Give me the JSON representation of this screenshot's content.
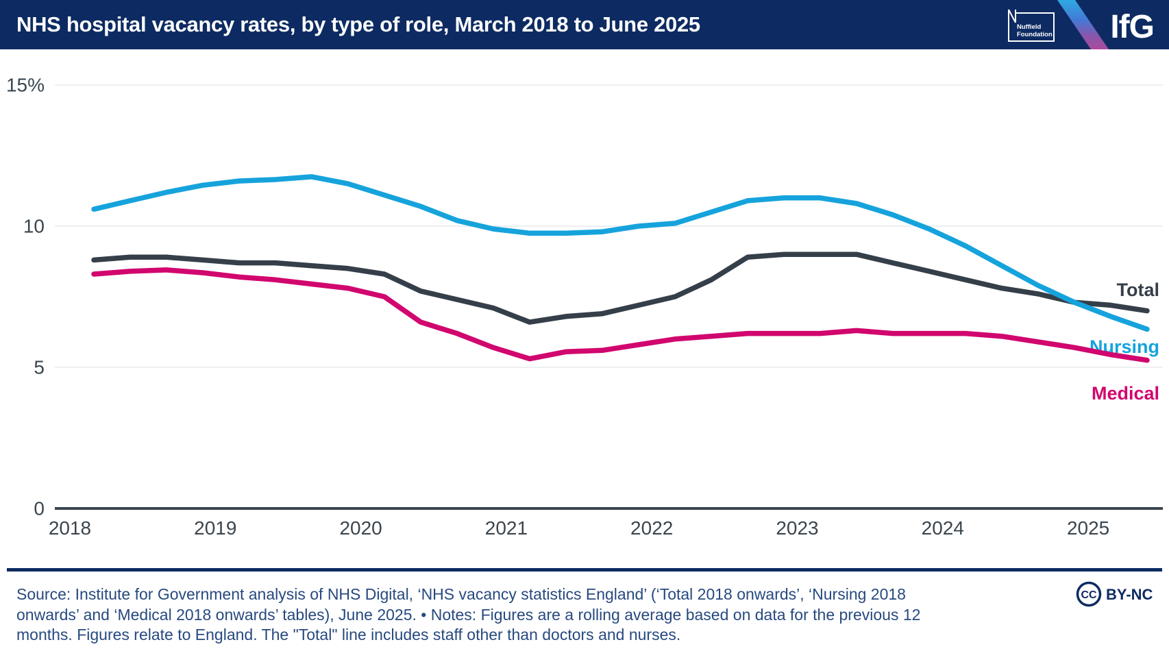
{
  "header": {
    "title": "NHS hospital vacancy rates, by type of role, March 2018 to June 2025",
    "nuffield_logo": {
      "line1": "Nuffield",
      "line2": "Foundation"
    },
    "ifg_logo": "IfG",
    "colors": {
      "header_bg": "#0d2b62",
      "stripe_top": "#2ea9e1",
      "stripe_mid": "#4379d6",
      "stripe_bottom": "#ab4a9c"
    }
  },
  "chart_data": {
    "type": "line",
    "title": "NHS hospital vacancy rates, by type of role, March 2018 to June 2025",
    "unit": "percent",
    "x_start": "March 2018",
    "x_end": "June 2025",
    "frequency": "quarterly",
    "x_tick_labels": [
      "2018",
      "2019",
      "2020",
      "2021",
      "2022",
      "2023",
      "2024",
      "2025"
    ],
    "y_ticks": [
      {
        "value": 15,
        "label": "15%"
      },
      {
        "value": 10,
        "label": "10"
      },
      {
        "value": 5,
        "label": "5"
      },
      {
        "value": 0,
        "label": "0"
      }
    ],
    "ylim": [
      0,
      15.5
    ],
    "grid": "horizontal",
    "legend_position": "right-end-labels",
    "series": [
      {
        "name": "Total",
        "color": "#353f49",
        "values": [
          8.8,
          8.9,
          8.9,
          8.8,
          8.7,
          8.7,
          8.6,
          8.5,
          8.3,
          7.7,
          7.4,
          7.1,
          6.6,
          6.8,
          6.9,
          7.2,
          7.5,
          8.1,
          8.9,
          9.0,
          9.0,
          9.0,
          8.7,
          8.4,
          8.1,
          7.8,
          7.6,
          7.3,
          7.2,
          7.0
        ]
      },
      {
        "name": "Nursing",
        "color": "#16a3dc",
        "values": [
          10.6,
          10.9,
          11.2,
          11.45,
          11.6,
          11.65,
          11.75,
          11.5,
          11.1,
          10.7,
          10.2,
          9.9,
          9.75,
          9.75,
          9.8,
          10.0,
          10.1,
          10.5,
          10.9,
          11.0,
          11.0,
          10.8,
          10.4,
          9.9,
          9.3,
          8.6,
          7.9,
          7.3,
          6.8,
          6.35
        ]
      },
      {
        "name": "Medical",
        "color": "#d1066e",
        "values": [
          8.3,
          8.4,
          8.45,
          8.35,
          8.2,
          8.1,
          7.95,
          7.8,
          7.5,
          6.6,
          6.2,
          5.7,
          5.3,
          5.55,
          5.6,
          5.8,
          6.0,
          6.1,
          6.2,
          6.2,
          6.2,
          6.3,
          6.2,
          6.2,
          6.2,
          6.1,
          5.9,
          5.7,
          5.45,
          5.25
        ]
      }
    ]
  },
  "footer": {
    "source_lines": [
      "Source: Institute for Government analysis of NHS Digital, ‘NHS vacancy statistics England’ (‘Total 2018 onwards’, ‘Nursing 2018",
      "onwards’ and ‘Medical 2018 onwards’ tables), June 2025. • Notes: Figures are a rolling average based on data for the previous 12",
      "months. Figures relate to England. The \"Total\" line includes staff other than doctors and nurses."
    ],
    "cc_label": "CC",
    "license_label": "BY-NC"
  }
}
